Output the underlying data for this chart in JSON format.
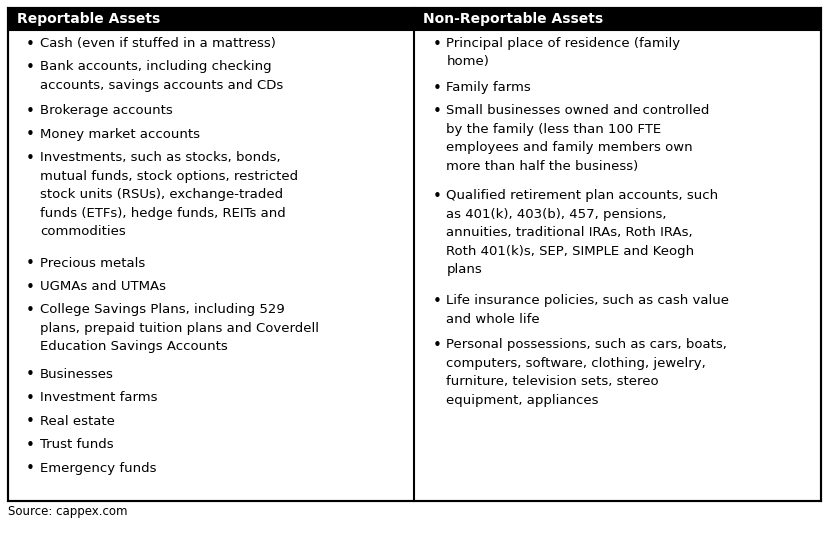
{
  "col1_header": "Reportable Assets",
  "col2_header": "Non-Reportable Assets",
  "col1_items": [
    "Cash (even if stuffed in a mattress)",
    "Bank accounts, including checking\naccounts, savings accounts and CDs",
    "Brokerage accounts",
    "Money market accounts",
    "Investments, such as stocks, bonds,\nmutual funds, stock options, restricted\nstock units (RSUs), exchange-traded\nfunds (ETFs), hedge funds, REITs and\ncommodities",
    "Precious metals",
    "UGMAs and UTMAs",
    "College Savings Plans, including 529\nplans, prepaid tuition plans and Coverdell\nEducation Savings Accounts",
    "Businesses",
    "Investment farms",
    "Real estate",
    "Trust funds",
    "Emergency funds"
  ],
  "col2_items": [
    "Principal place of residence (family\nhome)",
    "Family farms",
    "Small businesses owned and controlled\nby the family (less than 100 FTE\nemployees and family members own\nmore than half the business)",
    "Qualified retirement plan accounts, such\nas 401(k), 403(b), 457, pensions,\nannuities, traditional IRAs, Roth IRAs,\nRoth 401(k)s, SEP, SIMPLE and Keogh\nplans",
    "Life insurance policies, such as cash value\nand whole life",
    "Personal possessions, such as cars, boats,\ncomputers, software, clothing, jewelry,\nfurniture, television sets, stereo\nequipment, appliances"
  ],
  "source_text": "Source: cappex.com",
  "header_bg": "#000000",
  "header_text_color": "#ffffff",
  "body_bg": "#ffffff",
  "border_color": "#000000",
  "text_color": "#000000",
  "font_size": 9.5,
  "header_font_size": 10.0,
  "bullet": "•",
  "fig_width": 8.29,
  "fig_height": 5.33,
  "dpi": 100
}
